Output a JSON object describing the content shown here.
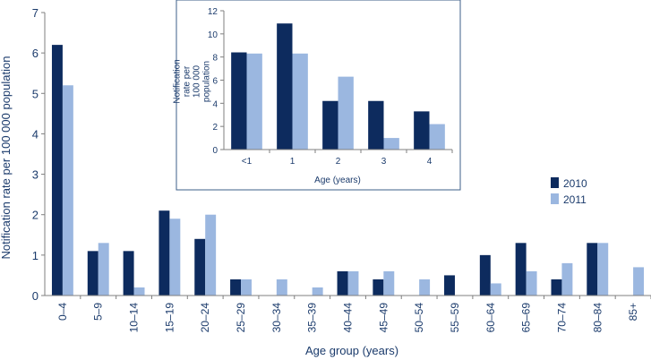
{
  "colors": {
    "2010": "#0d2b5e",
    "2011": "#9bb7e0",
    "text": "#1a3a6b",
    "axis": "#7f7f7f",
    "inset_border": "#3e5f8a"
  },
  "chart_data": [
    {
      "id": "main",
      "type": "bar",
      "title": "",
      "xlabel": "Age group (years)",
      "ylabel": "Notification rate per 100 000 population",
      "ylim": [
        0,
        7
      ],
      "yticks": [
        0,
        1,
        2,
        3,
        4,
        5,
        6,
        7
      ],
      "grid": false,
      "legend_position": "right",
      "categories": [
        "0–4",
        "5–9",
        "10–14",
        "15–19",
        "20–24",
        "25–29",
        "30–34",
        "35–39",
        "40–44",
        "45–49",
        "50–54",
        "55–59",
        "60–64",
        "65–69",
        "70–74",
        "80–84",
        "85+"
      ],
      "series": [
        {
          "name": "2010",
          "values": [
            6.2,
            1.1,
            1.1,
            2.1,
            1.4,
            0.4,
            0,
            0,
            0.6,
            0.4,
            0,
            0.5,
            1.0,
            1.3,
            0.4,
            1.3,
            0
          ]
        },
        {
          "name": "2011",
          "values": [
            5.2,
            1.3,
            0.2,
            1.9,
            2.0,
            0.4,
            0.4,
            0.2,
            0.6,
            0.6,
            0.4,
            0,
            0.3,
            0.6,
            0.8,
            1.3,
            0.7
          ]
        }
      ]
    },
    {
      "id": "inset",
      "type": "bar",
      "title": "",
      "xlabel": "Age (years)",
      "ylabel": "Notification rate per 100 000 population",
      "ylim": [
        0,
        12
      ],
      "yticks": [
        0,
        2,
        4,
        6,
        8,
        10,
        12
      ],
      "grid": false,
      "categories": [
        "<1",
        "1",
        "2",
        "3",
        "4"
      ],
      "series": [
        {
          "name": "2010",
          "values": [
            8.4,
            10.9,
            4.2,
            4.2,
            3.3
          ]
        },
        {
          "name": "2011",
          "values": [
            8.3,
            8.3,
            6.3,
            1.0,
            2.2
          ]
        }
      ]
    }
  ]
}
